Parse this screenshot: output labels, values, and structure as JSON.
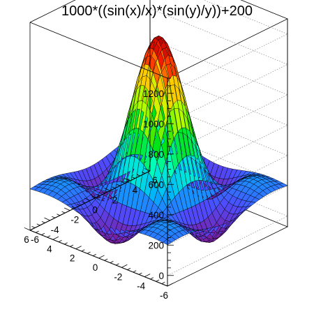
{
  "chart_data": {
    "type": "surface",
    "title": "1000*((sin(x)/x)*(sin(y)/y))+200",
    "function": "1000*((sin(x)/x)*(sin(y)/y))+200",
    "x": {
      "range": [
        -6,
        6
      ],
      "ticks": [
        -6,
        -4,
        -2,
        0,
        2,
        4,
        6
      ],
      "tick_labels": [
        "-6",
        "-4",
        "-2",
        "0",
        "2",
        "4",
        "6"
      ]
    },
    "y": {
      "range": [
        -6,
        6
      ],
      "ticks": [
        -6,
        -4,
        -2,
        0,
        2,
        4,
        6
      ],
      "tick_labels": [
        "-6",
        "-4",
        "-2",
        "0",
        "2",
        "4",
        "6"
      ]
    },
    "z": {
      "range": [
        -70,
        1300
      ],
      "ticks": [
        0,
        200,
        400,
        600,
        800,
        1000,
        1200
      ],
      "tick_labels": [
        "0",
        "200",
        "400",
        "600",
        "800",
        "1000",
        "1200"
      ]
    },
    "samples": 30,
    "z_min": -4.4,
    "z_max": 1200,
    "colormap": [
      "#7B1FA2",
      "#4D4DFF",
      "#00B0FF",
      "#00FFC8",
      "#00E000",
      "#C8FF00",
      "#FFC800",
      "#FF2000",
      "#B00000"
    ],
    "grid": true
  }
}
